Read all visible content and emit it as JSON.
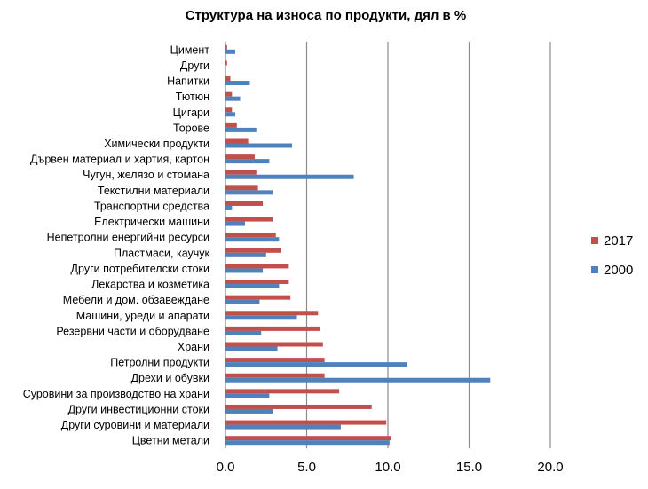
{
  "chart_data": {
    "type": "bar",
    "orientation": "horizontal",
    "title": "Структура на износа по продукти, дял в %",
    "categories": [
      "Цимент",
      "Други",
      "Напитки",
      "Тютюн",
      "Цигари",
      "Торове",
      "Химически продукти",
      "Дървен материал и хартия, картон",
      "Чугун, желязо и стомана",
      "Текстилни материали",
      "Транспортни средства",
      "Електрически машини",
      "Непетролни енергийни ресурси",
      "Пластмаси, каучук",
      "Други потребителски стоки",
      "Лекарства и козметика",
      "Мебели и дом. обзавеждане",
      "Машини, уреди и апарати",
      "Резервни части и оборудване",
      "Храни",
      "Петролни продукти",
      "Дрехи и обувки",
      "Суровини за производство на храни",
      "Други инвестиционни стоки",
      "Други суровини и материали",
      "Цветни метали"
    ],
    "series": [
      {
        "name": "2017",
        "color": "#C0504D",
        "values": [
          0.1,
          0.1,
          0.3,
          0.4,
          0.4,
          0.7,
          1.4,
          1.8,
          1.9,
          2.0,
          2.3,
          2.9,
          3.1,
          3.4,
          3.9,
          3.9,
          4.0,
          5.7,
          5.8,
          6.0,
          6.1,
          6.1,
          7.0,
          9.0,
          9.9,
          10.2
        ]
      },
      {
        "name": "2000",
        "color": "#4F81BD",
        "values": [
          0.6,
          0.0,
          1.5,
          0.9,
          0.6,
          1.9,
          4.1,
          2.7,
          7.9,
          2.9,
          0.4,
          1.2,
          3.3,
          2.5,
          2.3,
          3.3,
          2.1,
          4.4,
          2.2,
          3.2,
          11.2,
          16.3,
          2.7,
          2.9,
          7.1,
          10.1
        ]
      }
    ],
    "x_ticks": [
      "0.0",
      "5.0",
      "10.0",
      "15.0",
      "20.0"
    ],
    "xlim": [
      0,
      20
    ],
    "grid": "vertical",
    "legend": {
      "position": "right",
      "entries": [
        "2017",
        "2000"
      ]
    }
  }
}
